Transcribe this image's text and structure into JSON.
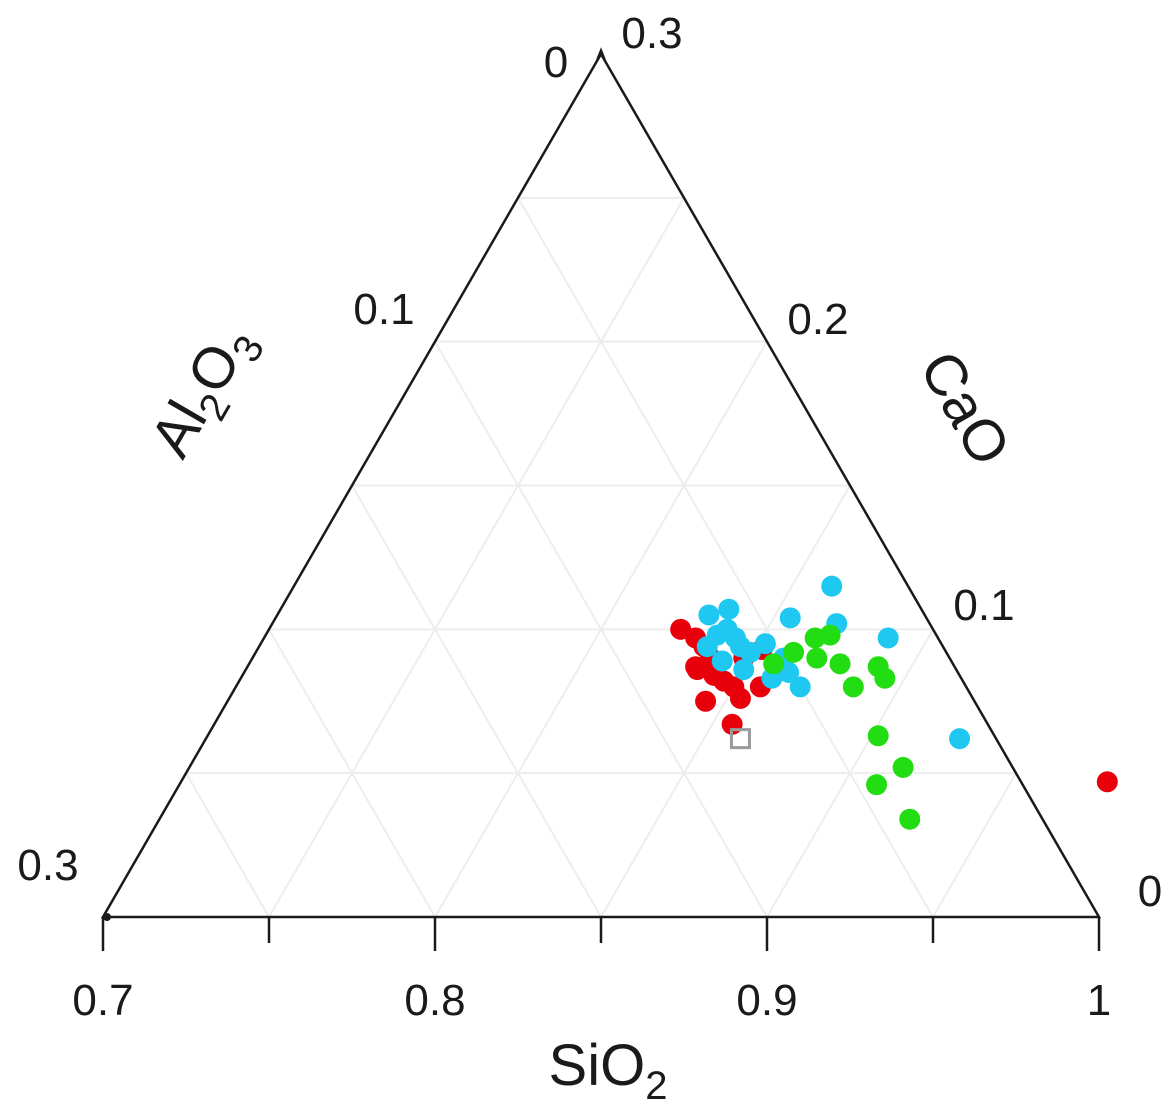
{
  "chart_data": {
    "type": "scatter",
    "subtype": "ternary",
    "axes": {
      "bottom": {
        "label": "SiO",
        "sub": "2",
        "range": [
          0.7,
          1.0
        ],
        "ticks": [
          "0.7",
          "0.8",
          "0.9",
          "1"
        ],
        "tick_values": [
          0.7,
          0.8,
          0.9,
          1.0
        ]
      },
      "left": {
        "label_parts": [
          "Al",
          "2",
          "O",
          "3"
        ],
        "range": [
          0,
          0.3
        ],
        "ticks": [
          "0",
          "0.1",
          "0.3"
        ],
        "tick_values": [
          0,
          0.1,
          0.3
        ]
      },
      "right": {
        "label": "CaO",
        "range": [
          0,
          0.3
        ],
        "ticks": [
          "0.3",
          "0.2",
          "0.1",
          "0"
        ],
        "tick_values": [
          0.3,
          0.2,
          0.1,
          0
        ]
      }
    },
    "grid": true,
    "legend": "none",
    "series": [
      {
        "color": "#e8000b",
        "points": [
          {
            "sio2": 0.824,
            "cao": 0.1
          },
          {
            "sio2": 0.83,
            "cao": 0.097
          },
          {
            "sio2": 0.834,
            "cao": 0.094
          },
          {
            "sio2": 0.838,
            "cao": 0.09
          },
          {
            "sio2": 0.836,
            "cao": 0.086
          },
          {
            "sio2": 0.842,
            "cao": 0.084
          },
          {
            "sio2": 0.846,
            "cao": 0.082
          },
          {
            "sio2": 0.85,
            "cao": 0.08
          },
          {
            "sio2": 0.848,
            "cao": 0.09
          },
          {
            "sio2": 0.852,
            "cao": 0.093
          },
          {
            "sio2": 0.858,
            "cao": 0.08
          },
          {
            "sio2": 0.854,
            "cao": 0.076
          },
          {
            "sio2": 0.844,
            "cao": 0.075
          },
          {
            "sio2": 0.835,
            "cao": 0.087
          },
          {
            "sio2": 0.856,
            "cao": 0.067
          },
          {
            "sio2": 0.979,
            "cao": 0.047
          }
        ]
      },
      {
        "color": "#1ec8f0",
        "points": [
          {
            "sio2": 0.83,
            "cao": 0.105
          },
          {
            "sio2": 0.835,
            "cao": 0.107
          },
          {
            "sio2": 0.836,
            "cao": 0.098
          },
          {
            "sio2": 0.838,
            "cao": 0.1
          },
          {
            "sio2": 0.842,
            "cao": 0.097
          },
          {
            "sio2": 0.845,
            "cao": 0.094
          },
          {
            "sio2": 0.835,
            "cao": 0.094
          },
          {
            "sio2": 0.842,
            "cao": 0.089
          },
          {
            "sio2": 0.85,
            "cao": 0.086
          },
          {
            "sio2": 0.852,
            "cao": 0.095
          },
          {
            "sio2": 0.86,
            "cao": 0.09
          },
          {
            "sio2": 0.855,
            "cao": 0.104
          },
          {
            "sio2": 0.862,
            "cao": 0.115
          },
          {
            "sio2": 0.87,
            "cao": 0.102
          },
          {
            "sio2": 0.888,
            "cao": 0.097
          },
          {
            "sio2": 0.864,
            "cao": 0.085
          },
          {
            "sio2": 0.87,
            "cao": 0.08
          },
          {
            "sio2": 0.86,
            "cao": 0.083
          },
          {
            "sio2": 0.849,
            "cao": 0.092
          },
          {
            "sio2": 0.927,
            "cao": 0.062
          }
        ]
      },
      {
        "color": "#22dd11",
        "points": [
          {
            "sio2": 0.866,
            "cao": 0.097
          },
          {
            "sio2": 0.87,
            "cao": 0.098
          },
          {
            "sio2": 0.862,
            "cao": 0.092
          },
          {
            "sio2": 0.858,
            "cao": 0.088
          },
          {
            "sio2": 0.878,
            "cao": 0.088
          },
          {
            "sio2": 0.89,
            "cao": 0.087
          },
          {
            "sio2": 0.894,
            "cao": 0.083
          },
          {
            "sio2": 0.886,
            "cao": 0.08
          },
          {
            "sio2": 0.902,
            "cao": 0.063
          },
          {
            "sio2": 0.915,
            "cao": 0.052
          },
          {
            "sio2": 0.91,
            "cao": 0.046
          },
          {
            "sio2": 0.926,
            "cao": 0.034
          },
          {
            "sio2": 0.87,
            "cao": 0.09
          }
        ]
      },
      {
        "color": "#9a9a9a",
        "marker": "open-square",
        "points": [
          {
            "sio2": 0.861,
            "cao": 0.062
          }
        ]
      }
    ]
  }
}
